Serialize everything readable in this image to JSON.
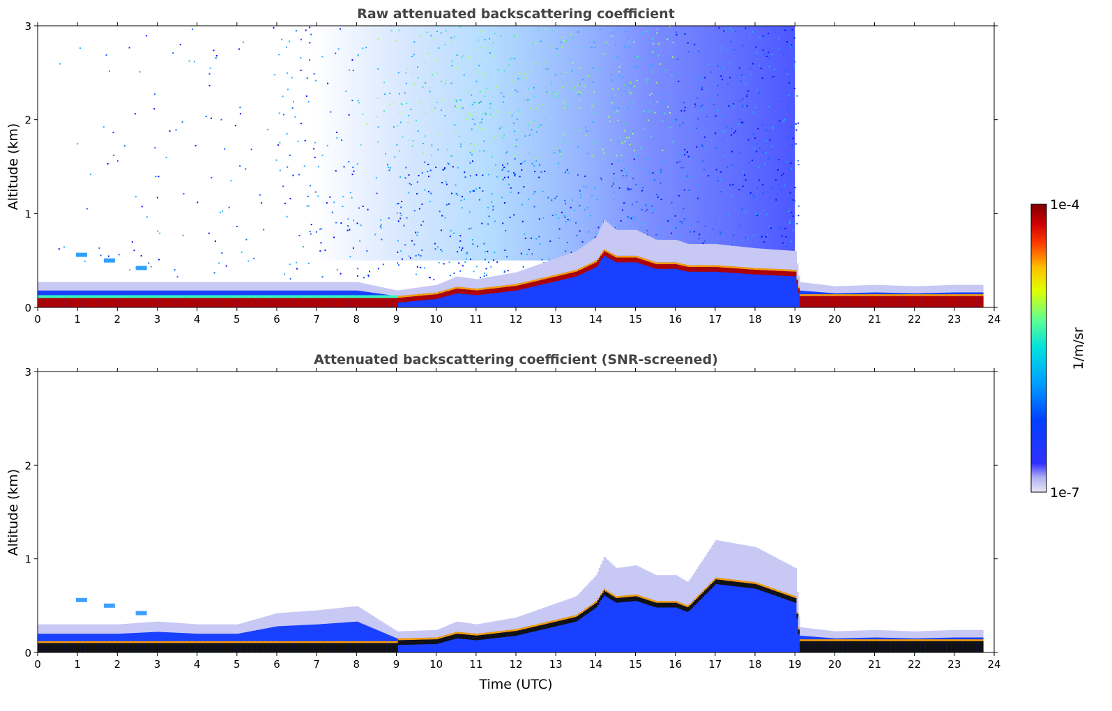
{
  "chart_data": [
    {
      "type": "heatmap",
      "title": "Raw attenuated backscattering coefficient",
      "xlabel": "",
      "ylabel": "Altitude (km)",
      "xlim": [
        0,
        24
      ],
      "ylim": [
        0,
        3
      ],
      "xticks": [
        "0",
        "1",
        "2",
        "3",
        "4",
        "5",
        "6",
        "7",
        "8",
        "9",
        "10",
        "11",
        "12",
        "13",
        "14",
        "15",
        "16",
        "17",
        "18",
        "19",
        "20",
        "21",
        "22",
        "23",
        "24"
      ],
      "yticks": [
        "0",
        "1",
        "2",
        "3"
      ],
      "screened": false,
      "layer_top_km": [
        [
          0,
          0.18
        ],
        [
          1,
          0.18
        ],
        [
          2,
          0.18
        ],
        [
          3,
          0.18
        ],
        [
          4,
          0.18
        ],
        [
          5,
          0.18
        ],
        [
          6,
          0.18
        ],
        [
          7,
          0.18
        ],
        [
          8,
          0.18
        ],
        [
          9,
          0.12
        ],
        [
          10,
          0.16
        ],
        [
          10.5,
          0.22
        ],
        [
          11,
          0.2
        ],
        [
          12,
          0.25
        ],
        [
          12.5,
          0.3
        ],
        [
          13,
          0.35
        ],
        [
          13.5,
          0.4
        ],
        [
          14,
          0.5
        ],
        [
          14.2,
          0.62
        ],
        [
          14.5,
          0.55
        ],
        [
          15,
          0.55
        ],
        [
          15.5,
          0.48
        ],
        [
          16,
          0.48
        ],
        [
          16.3,
          0.45
        ],
        [
          17,
          0.45
        ],
        [
          18,
          0.42
        ],
        [
          19,
          0.4
        ],
        [
          19.1,
          0.18
        ],
        [
          20,
          0.15
        ],
        [
          21,
          0.16
        ],
        [
          22,
          0.15
        ],
        [
          23,
          0.16
        ],
        [
          23.7,
          0.16
        ]
      ],
      "elevated_aerosol": [
        [
          1.1,
          0.56
        ],
        [
          1.8,
          0.5
        ],
        [
          2.6,
          0.42
        ]
      ],
      "noise_region": {
        "x": [
          7,
          19
        ],
        "y": [
          0.5,
          3
        ]
      }
    },
    {
      "type": "heatmap",
      "title": "Attenuated backscattering coefficient (SNR-screened)",
      "xlabel": "Time (UTC)",
      "ylabel": "Altitude (km)",
      "xlim": [
        0,
        24
      ],
      "ylim": [
        0,
        3
      ],
      "xticks": [
        "0",
        "1",
        "2",
        "3",
        "4",
        "5",
        "6",
        "7",
        "8",
        "9",
        "10",
        "11",
        "12",
        "13",
        "14",
        "15",
        "16",
        "17",
        "18",
        "19",
        "20",
        "21",
        "22",
        "23",
        "24"
      ],
      "yticks": [
        "0",
        "1",
        "2",
        "3"
      ],
      "screened": true,
      "layer_top_km": [
        [
          0,
          0.2
        ],
        [
          1,
          0.2
        ],
        [
          2,
          0.2
        ],
        [
          3,
          0.22
        ],
        [
          4,
          0.2
        ],
        [
          5,
          0.2
        ],
        [
          6,
          0.28
        ],
        [
          7,
          0.3
        ],
        [
          8,
          0.33
        ],
        [
          9,
          0.15
        ],
        [
          10,
          0.16
        ],
        [
          10.5,
          0.22
        ],
        [
          11,
          0.2
        ],
        [
          12,
          0.25
        ],
        [
          12.5,
          0.3
        ],
        [
          13,
          0.35
        ],
        [
          13.5,
          0.4
        ],
        [
          14,
          0.55
        ],
        [
          14.2,
          0.68
        ],
        [
          14.5,
          0.6
        ],
        [
          15,
          0.62
        ],
        [
          15.5,
          0.55
        ],
        [
          16,
          0.55
        ],
        [
          16.3,
          0.5
        ],
        [
          17,
          0.8
        ],
        [
          18,
          0.75
        ],
        [
          19,
          0.6
        ],
        [
          19.1,
          0.18
        ],
        [
          20,
          0.15
        ],
        [
          21,
          0.16
        ],
        [
          22,
          0.15
        ],
        [
          23,
          0.16
        ],
        [
          23.7,
          0.16
        ]
      ],
      "elevated_aerosol": [
        [
          1.1,
          0.56
        ],
        [
          1.8,
          0.5
        ],
        [
          2.6,
          0.42
        ]
      ],
      "noise_region": null
    }
  ],
  "colorbar": {
    "label": "1/m/sr",
    "max_label": "1e-4",
    "min_label": "1e-7",
    "range": [
      1e-07,
      0.0001
    ],
    "scale": "log",
    "colors": [
      "#e8e8f8",
      "#c8c8f2",
      "#9a9af0",
      "#3030ff",
      "#0000ff",
      "#0040ff",
      "#0090ff",
      "#00d0ff",
      "#30ffc8",
      "#90ff60",
      "#e0ff00",
      "#ffd000",
      "#ff8000",
      "#ff2000",
      "#d00000",
      "#800000"
    ]
  }
}
